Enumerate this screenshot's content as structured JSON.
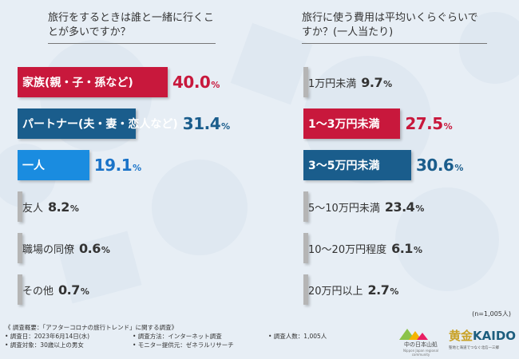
{
  "sample_size": "(n=1,005人)",
  "chart_data": [
    {
      "type": "bar",
      "orientation": "horizontal",
      "title": "旅行をするときは誰と一緒に行くことが多いですか？",
      "categories": [
        "家族(親・子・孫など)",
        "パートナー(夫・妻・恋人など)",
        "一人",
        "友人",
        "職場の同僚",
        "その他"
      ],
      "values": [
        40.0,
        31.4,
        19.1,
        8.2,
        0.6,
        0.7
      ],
      "value_labels": [
        "40.0",
        "31.4",
        "19.1",
        "8.2",
        "0.6",
        "0.7"
      ],
      "unit": "%",
      "xlim": [
        0,
        40
      ],
      "colors": [
        "#c8183c",
        "#1a5d8c",
        "#1a8ce0",
        "#b5b5b5",
        "#b5b5b5",
        "#b5b5b5"
      ],
      "highlight": [
        true,
        true,
        true,
        false,
        false,
        false
      ]
    },
    {
      "type": "bar",
      "orientation": "horizontal",
      "title": "旅行に使う費用は平均いくらぐらいですか？(一人当たり)",
      "categories": [
        "1万円未満",
        "1〜3万円未満",
        "3〜5万円未満",
        "5〜10万円未満",
        "10〜20万円程度",
        "20万円以上"
      ],
      "values": [
        9.7,
        27.5,
        30.6,
        23.4,
        6.1,
        2.7
      ],
      "value_labels": [
        "9.7",
        "27.5",
        "30.6",
        "23.4",
        "6.1",
        "2.7"
      ],
      "unit": "%",
      "xlim": [
        0,
        30.6
      ],
      "colors": [
        "#b5b5b5",
        "#c8183c",
        "#1a5d8c",
        "#b5b5b5",
        "#b5b5b5",
        "#b5b5b5"
      ],
      "highlight": [
        false,
        true,
        true,
        false,
        false,
        false
      ]
    }
  ],
  "footer": {
    "heading": "《 調査概要：「アフターコロナの旅行トレンド」に関する調査》",
    "items": [
      [
        "• 調査日：2023年6月14日(水)",
        "• 調査方法：インターネット調査",
        "• 調査人数：1,005人"
      ],
      [
        "• 調査対象：30歳以上の男女",
        "• モニター提供元：ゼネラルリサーチ",
        ""
      ]
    ]
  },
  "logos": {
    "logo1": {
      "text": "中の日本山処",
      "sub": "Nippon Japan regional community"
    },
    "logo2": {
      "gold": "黄金",
      "main": "KAIDO",
      "sub": "聖地と海道でつなぐ北信一三郷"
    }
  }
}
